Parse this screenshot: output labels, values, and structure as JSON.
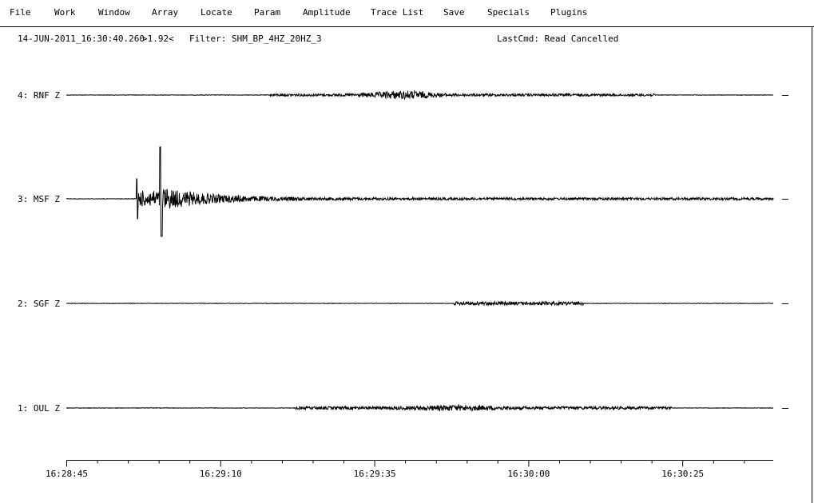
{
  "menu": [
    "File",
    "Work",
    "Window",
    "Array",
    "Locate",
    "Param",
    "Amplitude",
    "Trace List",
    "Save",
    "Specials",
    "Plugins"
  ],
  "status": {
    "time": "14-JUN-2011_16:30:40.260",
    "scale": ">1.92<",
    "filter": "Filter: SHM_BP_4HZ_20HZ_3",
    "last_cmd": "LastCmd: Read Cancelled"
  },
  "traces": [
    "4: RNF Z",
    "3: MSF Z",
    "2: SGF Z",
    "1: OUL Z"
  ],
  "time_axis": {
    "ticks": [
      "16:28:45",
      "16:29:10",
      "16:29:35",
      "16:30:00",
      "16:30:25"
    ]
  }
}
